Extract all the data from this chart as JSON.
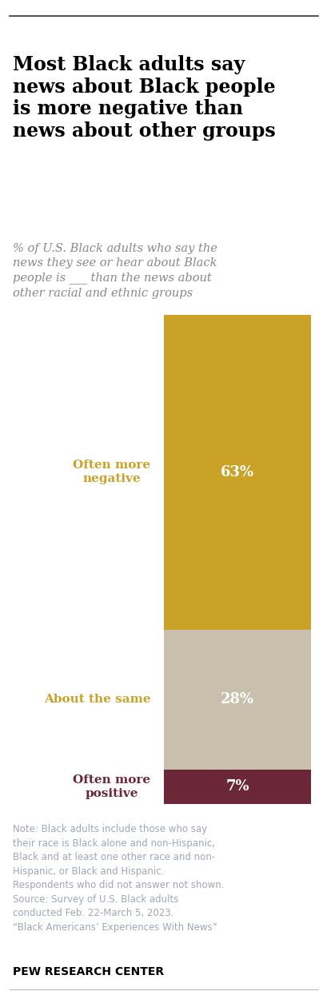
{
  "title": "Most Black adults say\nnews about Black people\nis more negative than\nnews about other groups",
  "subtitle": "% of U.S. Black adults who say the\nnews they see or hear about Black\npeople is ___ than the news about\nother racial and ethnic groups",
  "categories": [
    "Often more\nnegative",
    "About the same",
    "Often more\npositive"
  ],
  "values": [
    63,
    28,
    7
  ],
  "bar_colors": [
    "#c9a227",
    "#c9bfad",
    "#6b2737"
  ],
  "label_colors": [
    "#c9a227",
    "#c9a227",
    "#6b2737"
  ],
  "value_label_color": "#ffffff",
  "note_text": "Note: Black adults include those who say\ntheir race is Black alone and non-Hispanic,\nBlack and at least one other race and non-\nHispanic, or Black and Hispanic.\nRespondents who did not answer not shown.\nSource: Survey of U.S. Black adults\nconducted Feb. 22-March 5, 2023.\n“Black Americans’ Experiences With News”",
  "footer": "PEW RESEARCH CENTER",
  "bg_color": "#ffffff",
  "title_color": "#000000",
  "subtitle_color": "#888888",
  "note_color": "#9ea8b3",
  "footer_color": "#000000"
}
